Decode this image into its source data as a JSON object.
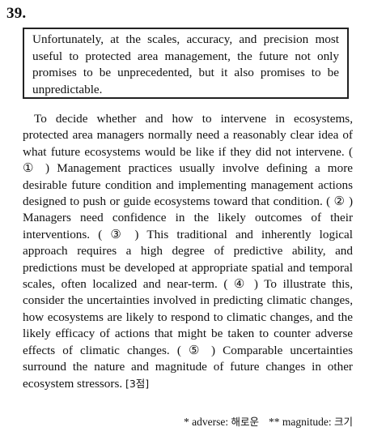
{
  "question_number": "39.",
  "given_sentence": "Unfortunately, at the scales, accuracy, and precision most useful to protected area management, the future not only promises to be unprecedented, but it also promises to be unpredictable.",
  "passage": {
    "seg0": "To decide whether and how to intervene in ecosystems, protected area managers normally need a reasonably clear idea of what future ecosystems would be like if they did not intervene.",
    "mark1": "( ① )",
    "seg1": "Management practices usually involve defining a more desirable future condition and implementing management actions designed to push or guide ecosystems toward that condition.",
    "mark2": "( ② )",
    "seg2": "Managers need confidence in the likely outcomes of their interventions.",
    "mark3": "( ③ )",
    "seg3": "This traditional and inherently logical approach requires a high degree of predictive ability, and predictions must be developed at appropriate spatial and temporal scales, often localized and near-term.",
    "mark4": "( ④ )",
    "seg4": "To illustrate this, consider the uncertainties involved in predicting climatic changes, how ecosystems are likely to respond to climatic changes, and the likely efficacy of actions that might be taken to counter adverse effects of climatic changes.",
    "mark5": "( ⑤ )",
    "seg5": "Comparable uncertainties surround the nature and magnitude of future changes in other ecosystem stressors.",
    "points": "[3점]"
  },
  "footnotes": {
    "note1_marker": "*",
    "note1_term": "adverse:",
    "note1_gloss": "해로운",
    "note2_marker": "**",
    "note2_term": "magnitude:",
    "note2_gloss": "크기"
  }
}
